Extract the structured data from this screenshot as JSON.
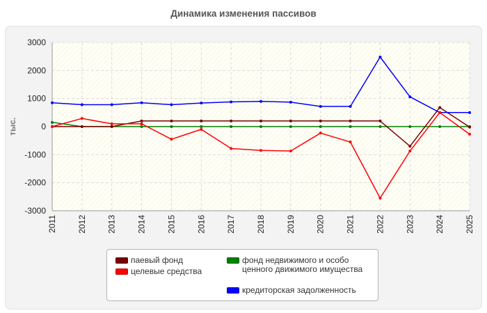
{
  "title": "Динамика изменения пассивов",
  "chart_data": {
    "type": "line",
    "title": "Динамика изменения пассивов",
    "xlabel": "",
    "ylabel": "тыс.",
    "x": [
      "2011",
      "2012",
      "2013",
      "2014",
      "2015",
      "2016",
      "2017",
      "2018",
      "2019",
      "2020",
      "2021",
      "2022",
      "2023",
      "2024",
      "2025"
    ],
    "ylim": [
      -3000,
      3000
    ],
    "yticks": [
      3000,
      2000,
      1000,
      0,
      -1000,
      -2000,
      -3000
    ],
    "ytick_labels": [
      "3000",
      "2000",
      "1000",
      "0",
      "-1000",
      "-2000",
      "-3000"
    ],
    "grid": true,
    "legend_position": "bottom",
    "series": [
      {
        "name": "паевый фонд",
        "color": "#7a0000",
        "values": [
          0,
          0,
          0,
          200,
          200,
          200,
          200,
          200,
          200,
          200,
          200,
          200,
          -700,
          680,
          -20
        ]
      },
      {
        "name": "целевые средства",
        "color": "#ff0000",
        "values": [
          0,
          290,
          100,
          100,
          -450,
          -100,
          -780,
          -850,
          -870,
          -230,
          -550,
          -2550,
          -870,
          500,
          -270
        ]
      },
      {
        "name": "фонд недвижимого и особо ценного движимого имущества",
        "color": "#008000",
        "values": [
          150,
          0,
          0,
          0,
          0,
          0,
          0,
          0,
          0,
          0,
          0,
          0,
          0,
          0,
          0
        ]
      },
      {
        "name": "кредиторская задолженность",
        "color": "#0000ff",
        "values": [
          850,
          780,
          780,
          850,
          780,
          840,
          880,
          900,
          870,
          720,
          720,
          2480,
          1060,
          500,
          500
        ]
      }
    ]
  }
}
